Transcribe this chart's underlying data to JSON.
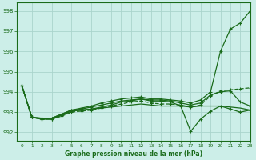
{
  "title": "Graphe pression niveau de la mer (hPa)",
  "bg_color": "#cceee8",
  "grid_color": "#aad4cc",
  "line_color": "#1a6b1a",
  "xlim": [
    -0.5,
    23
  ],
  "ylim": [
    991.6,
    998.4
  ],
  "yticks": [
    992,
    993,
    994,
    995,
    996,
    997,
    998
  ],
  "xticks": [
    0,
    1,
    2,
    3,
    4,
    5,
    6,
    7,
    8,
    9,
    10,
    11,
    12,
    13,
    14,
    15,
    16,
    17,
    18,
    19,
    20,
    21,
    22,
    23
  ],
  "series": [
    {
      "data": [
        994.3,
        992.75,
        992.65,
        992.7,
        992.85,
        993.05,
        993.1,
        993.15,
        993.2,
        993.25,
        993.3,
        993.35,
        993.4,
        993.35,
        993.3,
        993.3,
        993.3,
        993.25,
        993.3,
        993.3,
        993.3,
        993.25,
        993.2,
        993.1
      ],
      "marker": false,
      "dashed": false
    },
    {
      "data": [
        994.3,
        992.75,
        992.65,
        992.65,
        992.8,
        993.0,
        993.05,
        993.1,
        993.2,
        993.3,
        993.4,
        993.5,
        993.55,
        993.45,
        993.4,
        993.4,
        993.35,
        993.25,
        993.35,
        993.8,
        994.05,
        994.1,
        994.15,
        994.2
      ],
      "marker": true,
      "dashed": true
    },
    {
      "data": [
        994.3,
        992.75,
        992.65,
        992.65,
        992.85,
        993.05,
        993.1,
        993.15,
        993.25,
        993.35,
        993.5,
        993.55,
        993.65,
        993.55,
        993.55,
        993.5,
        993.3,
        992.05,
        992.65,
        993.05,
        993.3,
        993.15,
        993.0,
        993.1
      ],
      "marker": true,
      "dashed": false
    },
    {
      "data": [
        994.3,
        992.75,
        992.7,
        992.7,
        992.9,
        993.1,
        993.15,
        993.25,
        993.35,
        993.45,
        993.55,
        993.6,
        993.65,
        993.6,
        993.6,
        993.55,
        993.45,
        993.35,
        993.45,
        993.85,
        994.0,
        994.05,
        993.5,
        993.3
      ],
      "marker": true,
      "dashed": false
    },
    {
      "data": [
        994.3,
        992.75,
        992.7,
        992.7,
        992.9,
        993.1,
        993.2,
        993.3,
        993.45,
        993.55,
        993.65,
        993.7,
        993.75,
        993.65,
        993.65,
        993.6,
        993.55,
        993.45,
        993.6,
        994.0,
        996.0,
        997.1,
        997.4,
        998.0
      ],
      "marker": true,
      "dashed": false
    }
  ]
}
